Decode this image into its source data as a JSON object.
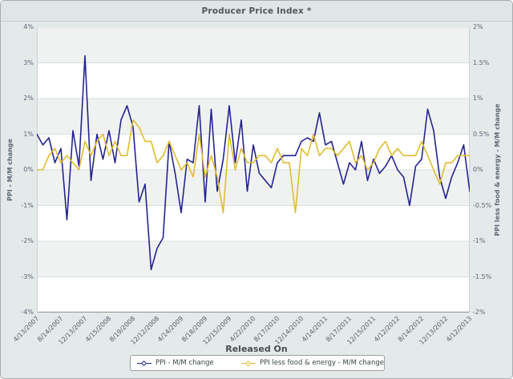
{
  "chart_data": {
    "type": "line",
    "title": "Producer Price Index *",
    "xlabel": "Released On",
    "grid": "horizontal-only",
    "band_pattern": "alternating gray/white starting gray at top",
    "legend_position": "bottom-center",
    "points_per_tick": 4,
    "x_tick_labels": [
      "4/13/2007",
      "8/14/2007",
      "12/13/2007",
      "4/15/2008",
      "8/19/2008",
      "12/12/2008",
      "4/14/2009",
      "8/18/2009",
      "12/15/2009",
      "4/22/2010",
      "8/17/2010",
      "12/14/2010",
      "4/14/2011",
      "8/17/2011",
      "12/15/2011",
      "4/12/2012",
      "8/14/2012",
      "12/13/2012",
      "4/12/2013"
    ],
    "left_axis": {
      "label": "PPI - M/M change",
      "min": -4,
      "max": 4,
      "tick_step": 1,
      "tick_labels": [
        "4%",
        "3%",
        "2%",
        "1%",
        "0%",
        "-1%",
        "-2%",
        "-3%",
        "-4%"
      ]
    },
    "right_axis": {
      "label": "PPI less food & energy - M/M change",
      "min": -2,
      "max": 2,
      "tick_step": 0.5,
      "tick_labels": [
        "2%",
        "1.5%",
        "1%",
        "0.5%",
        "0%",
        "-0.5%",
        "-1%",
        "-1.5%",
        "-2%"
      ]
    },
    "series": [
      {
        "name": "PPI - M/M change",
        "axis": "left",
        "color": "#242490",
        "marker": "diamond",
        "values": [
          1.0,
          0.7,
          0.9,
          0.2,
          0.6,
          -1.4,
          1.1,
          0.1,
          3.2,
          -0.3,
          1.0,
          0.3,
          1.1,
          0.2,
          1.4,
          1.8,
          1.2,
          -0.9,
          -0.4,
          -2.8,
          -2.2,
          -1.9,
          0.8,
          -0.1,
          -1.2,
          0.3,
          0.2,
          1.8,
          -0.9,
          1.7,
          -0.6,
          0.3,
          1.8,
          0.2,
          1.4,
          -0.6,
          0.7,
          -0.1,
          -0.3,
          -0.5,
          0.2,
          0.4,
          0.4,
          0.4,
          0.8,
          0.9,
          0.8,
          1.6,
          0.7,
          0.8,
          0.2,
          -0.4,
          0.2,
          0.0,
          0.8,
          -0.3,
          0.3,
          -0.1,
          0.1,
          0.4,
          0.0,
          -0.2,
          -1.0,
          0.1,
          0.3,
          1.7,
          1.1,
          -0.2,
          -0.8,
          -0.2,
          0.2,
          0.7,
          -0.6
        ]
      },
      {
        "name": "PPI less food & energy - M/M change",
        "axis": "right",
        "color": "#e0bd30",
        "marker": "diamond",
        "values": [
          0.0,
          0.0,
          0.2,
          0.3,
          0.1,
          0.2,
          0.1,
          0.0,
          0.4,
          0.2,
          0.4,
          0.5,
          0.2,
          0.4,
          0.2,
          0.2,
          0.7,
          0.6,
          0.4,
          0.4,
          0.1,
          0.2,
          0.4,
          0.2,
          0.0,
          0.1,
          -0.1,
          0.5,
          -0.1,
          0.2,
          -0.1,
          -0.6,
          0.5,
          0.0,
          0.3,
          0.1,
          0.1,
          0.2,
          0.2,
          0.1,
          0.3,
          0.1,
          0.1,
          -0.6,
          0.3,
          0.2,
          0.5,
          0.2,
          0.3,
          0.3,
          0.2,
          0.3,
          0.4,
          0.1,
          0.2,
          0.0,
          0.1,
          0.3,
          0.4,
          0.2,
          0.3,
          0.2,
          0.2,
          0.2,
          0.4,
          0.2,
          0.0,
          -0.2,
          0.1,
          0.1,
          0.2,
          0.2,
          0.2
        ]
      }
    ]
  }
}
